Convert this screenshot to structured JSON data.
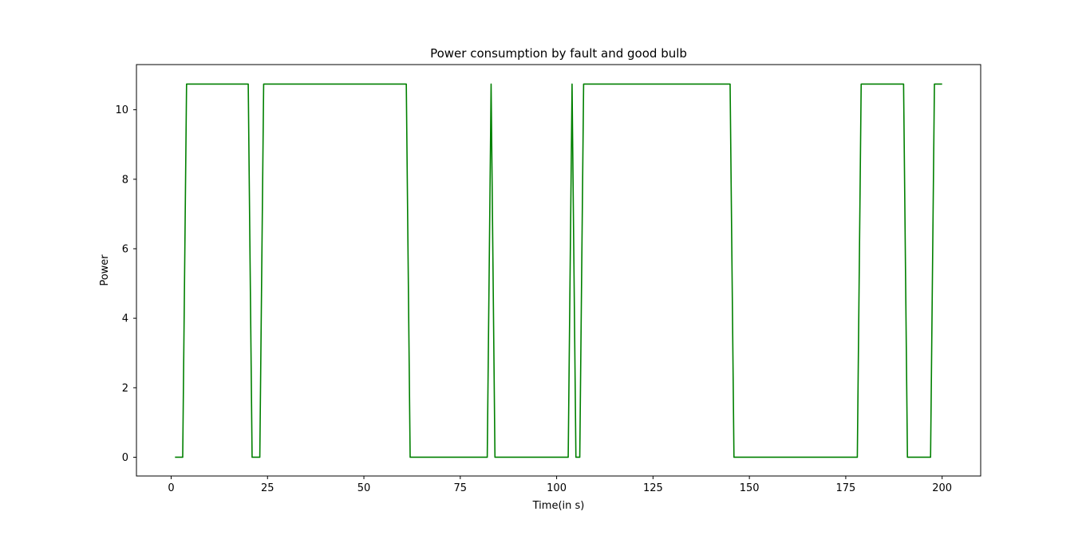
{
  "chart_data": {
    "type": "line",
    "title": "Power consumption by fault and good bulb",
    "xlabel": "Time(in s)",
    "ylabel": "Power",
    "xlim": [
      -9,
      210
    ],
    "ylim": [
      -0.54,
      11.3
    ],
    "xticks": [
      0,
      25,
      50,
      75,
      100,
      125,
      150,
      175,
      200
    ],
    "yticks": [
      0,
      2,
      4,
      6,
      8,
      10
    ],
    "grid": false,
    "legend": "none",
    "series": [
      {
        "color": "#008000",
        "x": [
          1,
          3,
          4,
          20,
          21,
          23,
          24,
          61,
          62,
          82,
          83,
          84,
          103,
          104,
          105,
          106,
          107,
          145,
          146,
          178,
          179,
          190,
          191,
          197,
          198,
          200
        ],
        "y": [
          0,
          0,
          10.74,
          10.74,
          0,
          0,
          10.74,
          10.74,
          0,
          0,
          10.74,
          0,
          0,
          10.74,
          0,
          0,
          10.74,
          10.74,
          0,
          0,
          10.74,
          10.74,
          0,
          0,
          10.74,
          10.74
        ]
      }
    ]
  }
}
